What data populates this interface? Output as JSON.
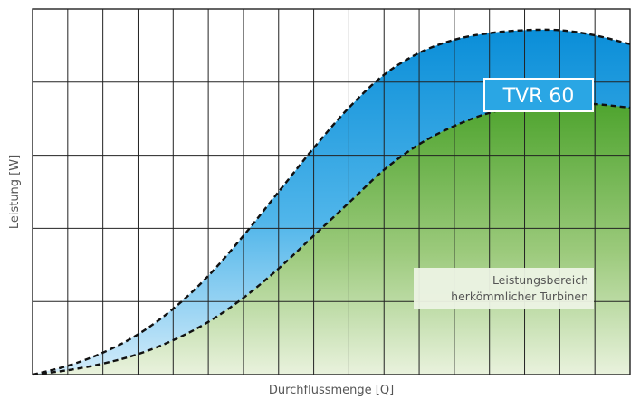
{
  "chart_data": {
    "type": "area",
    "title": "",
    "xlabel": "Durchflussmenge [Q]",
    "ylabel": "Leistung [W]",
    "xlim": [
      0,
      17
    ],
    "ylim": [
      0,
      5
    ],
    "grid": true,
    "grid_x_divisions": 17,
    "grid_y_divisions": 5,
    "series": [
      {
        "name": "TVR 60",
        "color": "#0a9ee4",
        "line_style": "dashed",
        "x": [
          0,
          1,
          2,
          3,
          4,
          5,
          6,
          7,
          8,
          9,
          10,
          11,
          12,
          13,
          14,
          15,
          16,
          17
        ],
        "y": [
          0,
          0.12,
          0.3,
          0.55,
          0.9,
          1.35,
          1.9,
          2.5,
          3.1,
          3.65,
          4.1,
          4.4,
          4.58,
          4.67,
          4.71,
          4.71,
          4.64,
          4.52
        ]
      },
      {
        "name": "Leistungsbereich herkömmlicher Turbinen",
        "color": "#58aa35",
        "line_style": "dashed",
        "x": [
          0,
          1,
          2,
          3,
          4,
          5,
          6,
          7,
          8,
          9,
          10,
          11,
          12,
          13,
          14,
          15,
          16,
          17
        ],
        "y": [
          0,
          0.06,
          0.15,
          0.28,
          0.47,
          0.72,
          1.05,
          1.45,
          1.9,
          2.35,
          2.8,
          3.15,
          3.4,
          3.58,
          3.68,
          3.71,
          3.7,
          3.65
        ]
      }
    ],
    "annotations": {
      "tvr_label": "TVR 60",
      "standard_line1": "Leistungsbereich",
      "standard_line2": "herkömmlicher Turbinen"
    }
  }
}
